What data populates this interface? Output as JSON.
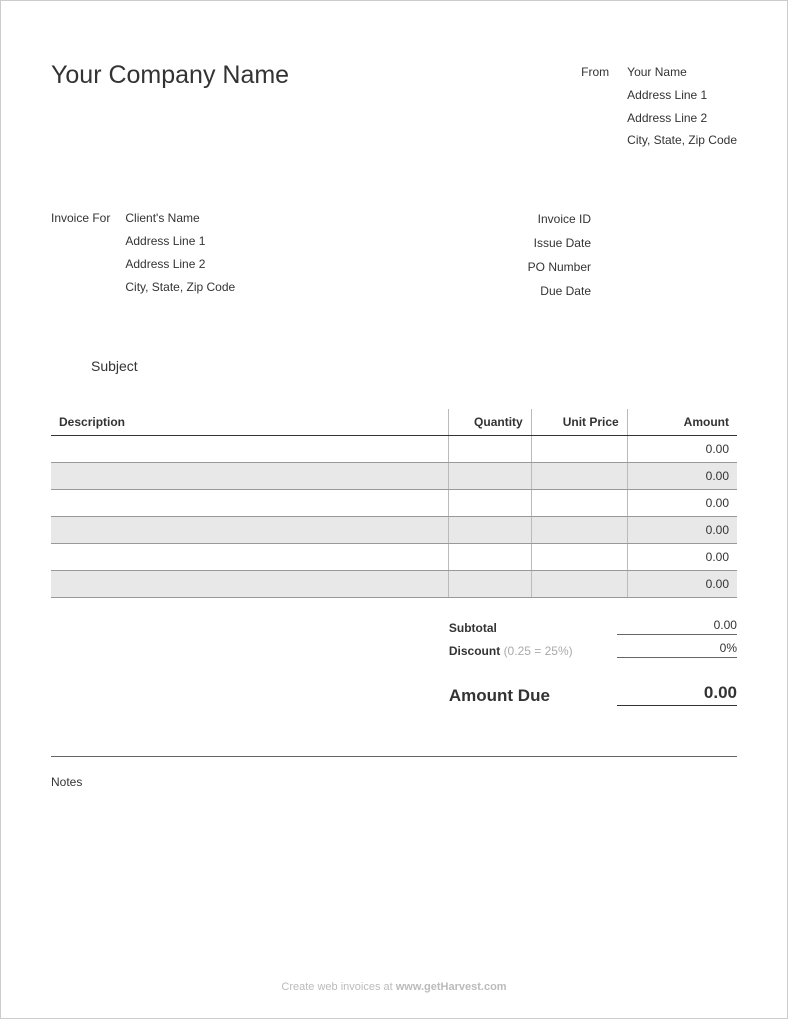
{
  "company_name": "Your Company Name",
  "from": {
    "label": "From",
    "lines": [
      "Your Name",
      "Address Line 1",
      "Address Line 2",
      "City, State, Zip Code"
    ]
  },
  "invoice_for": {
    "label": "Invoice For",
    "lines": [
      "Client's Name",
      "Address Line 1",
      "Address Line 2",
      "City, State, Zip Code"
    ]
  },
  "meta_labels": [
    "Invoice ID",
    "Issue Date",
    "PO Number",
    "Due Date"
  ],
  "subject_label": "Subject",
  "table": {
    "columns": [
      "Description",
      "Quantity",
      "Unit Price",
      "Amount"
    ],
    "rows": [
      {
        "desc": "",
        "qty": "",
        "price": "",
        "amount": "0.00",
        "shade": false
      },
      {
        "desc": "",
        "qty": "",
        "price": "",
        "amount": "0.00",
        "shade": true
      },
      {
        "desc": "",
        "qty": "",
        "price": "",
        "amount": "0.00",
        "shade": false
      },
      {
        "desc": "",
        "qty": "",
        "price": "",
        "amount": "0.00",
        "shade": true
      },
      {
        "desc": "",
        "qty": "",
        "price": "",
        "amount": "0.00",
        "shade": false
      },
      {
        "desc": "",
        "qty": "",
        "price": "",
        "amount": "0.00",
        "shade": true
      }
    ],
    "row_shade_color": "#e8e8e8",
    "border_color": "#999999",
    "header_border_color": "#333333"
  },
  "totals": {
    "subtotal_label": "Subtotal",
    "subtotal_value": "0.00",
    "discount_label": "Discount",
    "discount_hint": "(0.25 = 25%)",
    "discount_value": "0%",
    "amount_due_label": "Amount Due",
    "amount_due_value": "0.00"
  },
  "notes_label": "Notes",
  "footer": {
    "prefix": "Create web invoices at ",
    "link": "www.getHarvest.com"
  },
  "colors": {
    "page_border": "#cccccc",
    "text": "#333333",
    "muted": "#aaaaaa",
    "footer": "#bbbbbb"
  }
}
